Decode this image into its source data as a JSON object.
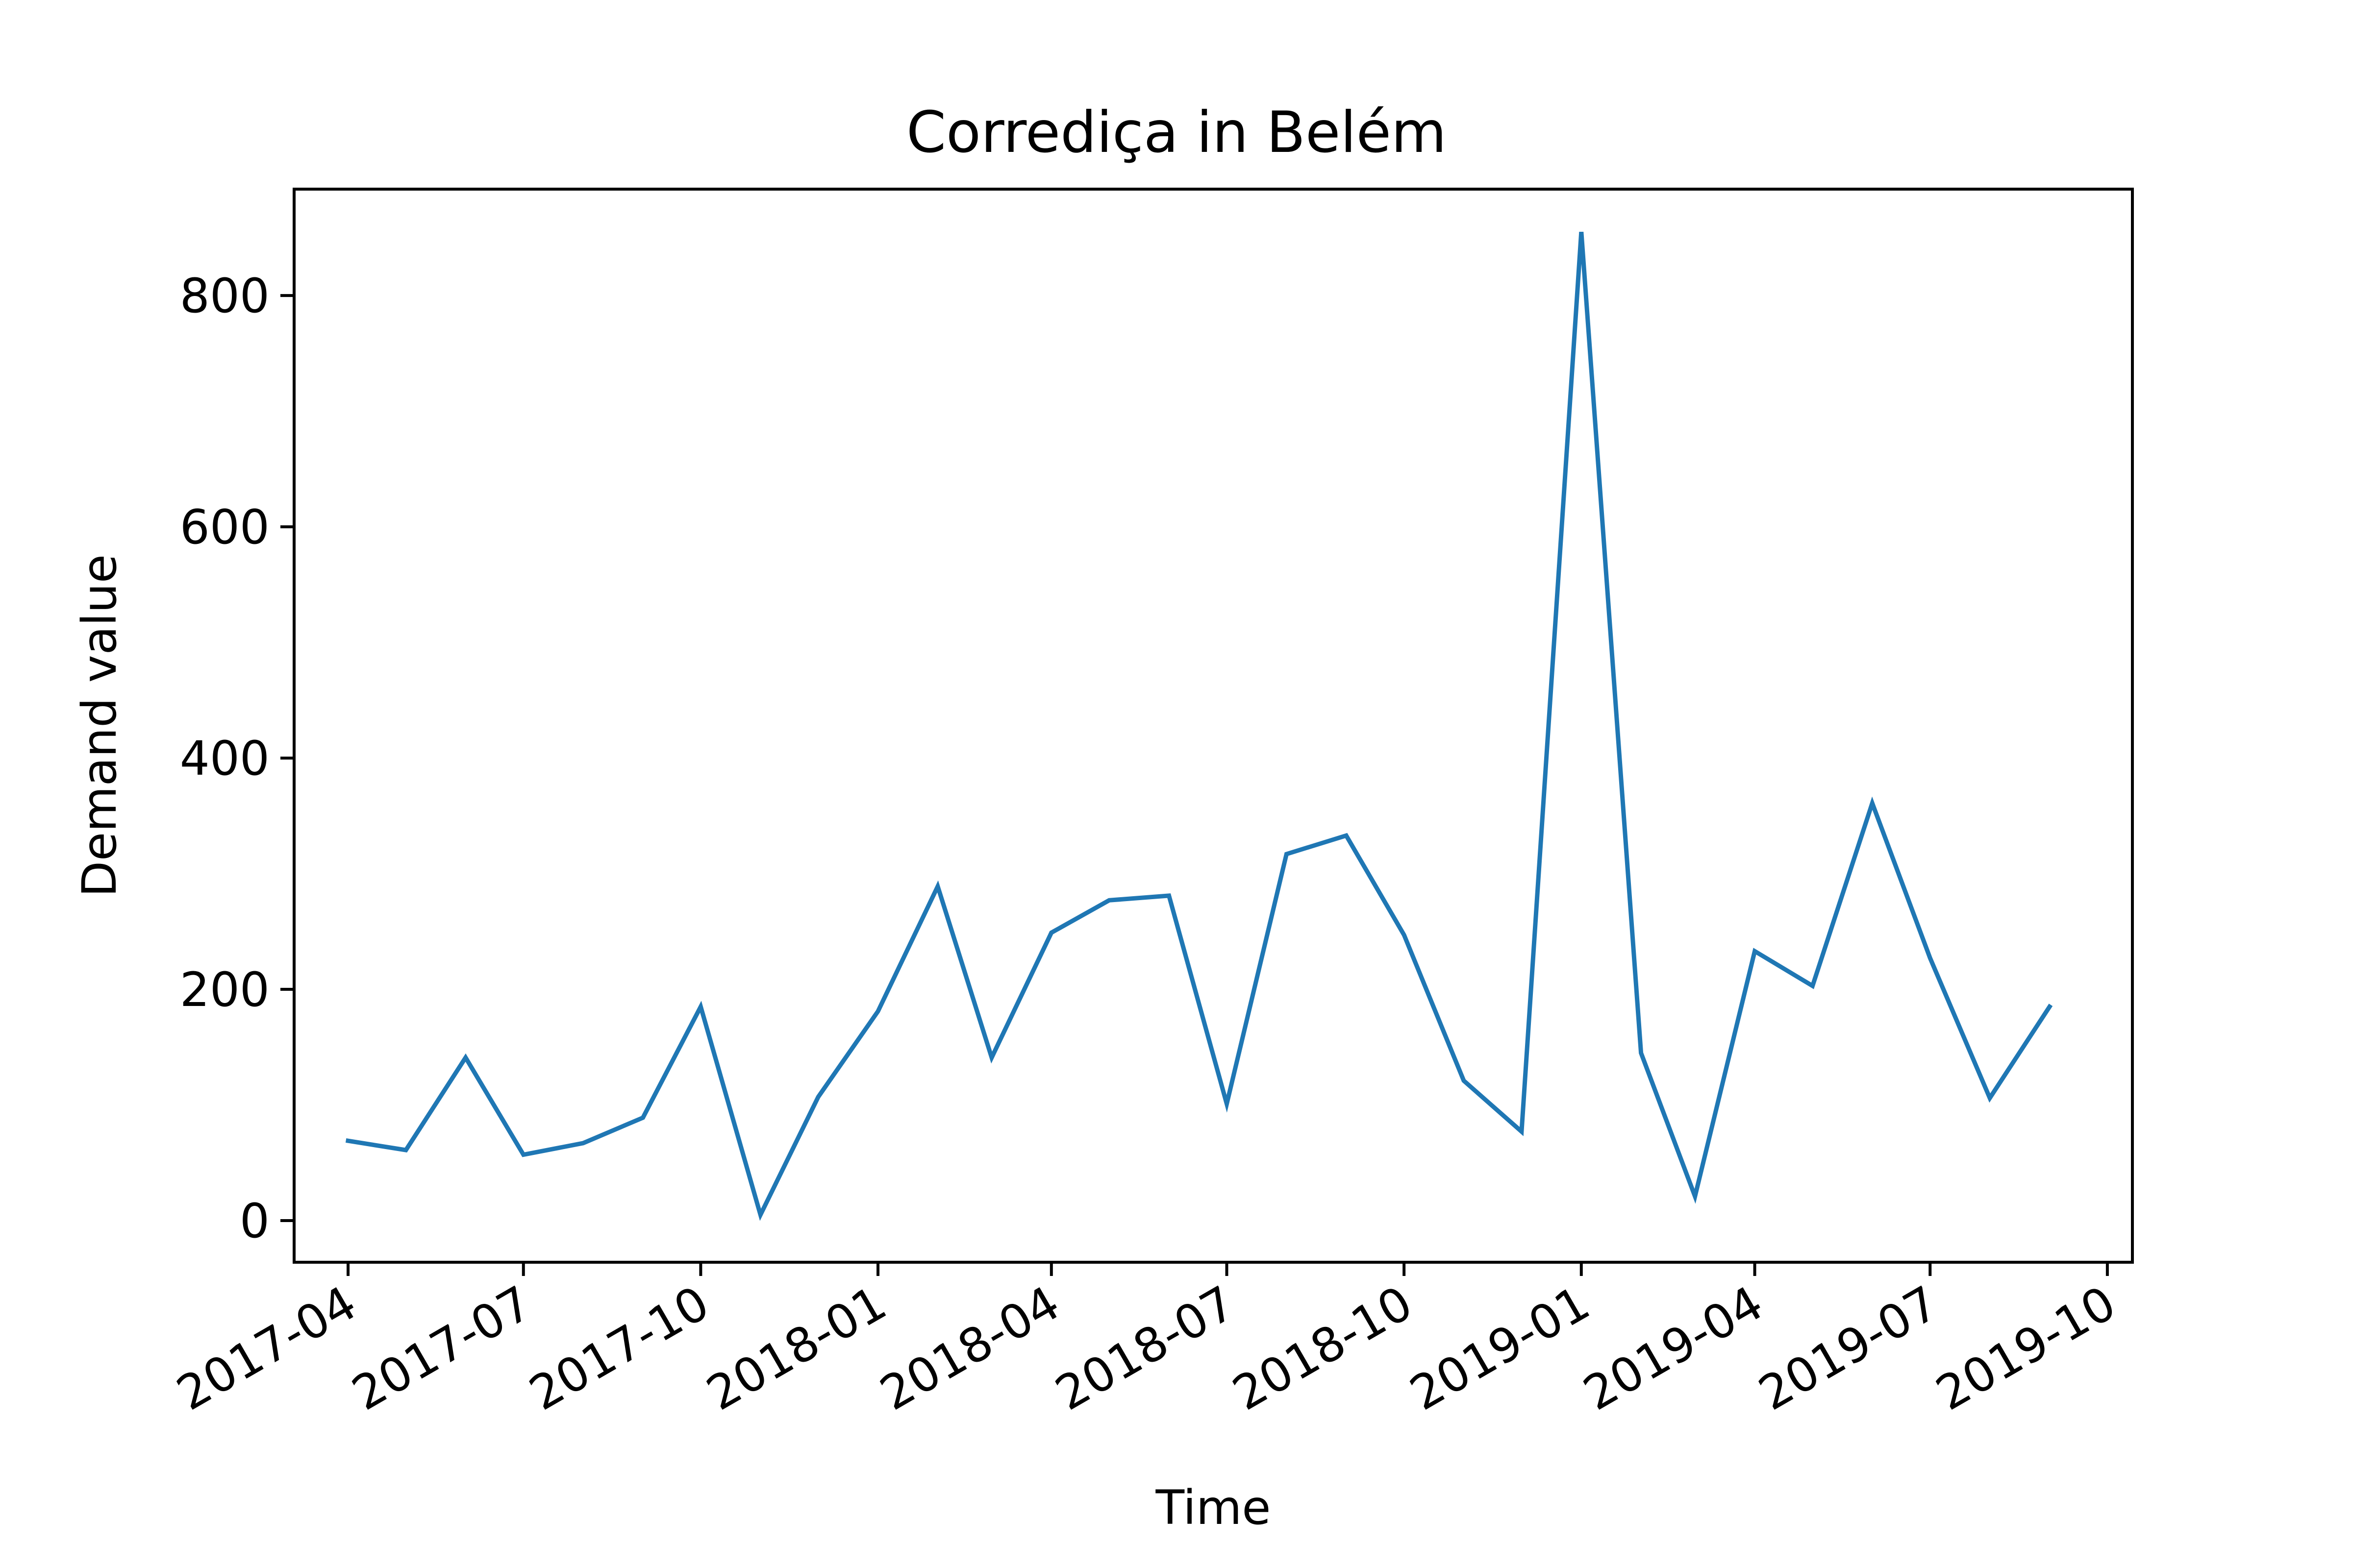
{
  "chart_data": {
    "type": "line",
    "title": "Corrediça in Belém",
    "xlabel": "Time",
    "ylabel": "Demand value",
    "xlim": [
      "2017-03-04",
      "2019-10-14"
    ],
    "ylim": [
      -36,
      892
    ],
    "x_ticks": [
      "2017-04",
      "2017-07",
      "2017-10",
      "2018-01",
      "2018-04",
      "2018-07",
      "2018-10",
      "2019-01",
      "2019-04",
      "2019-07",
      "2019-10"
    ],
    "y_ticks": [
      0,
      200,
      400,
      600,
      800
    ],
    "grid": false,
    "series": [
      {
        "color": "#1f77b4",
        "x": [
          "2017-04-01",
          "2017-05-01",
          "2017-06-01",
          "2017-07-01",
          "2017-08-01",
          "2017-09-01",
          "2017-10-01",
          "2017-11-01",
          "2017-12-01",
          "2018-01-01",
          "2018-02-01",
          "2018-03-01",
          "2018-04-01",
          "2018-05-01",
          "2018-06-01",
          "2018-07-01",
          "2018-08-01",
          "2018-09-01",
          "2018-10-01",
          "2018-11-01",
          "2018-12-01",
          "2019-01-01",
          "2019-02-01",
          "2019-03-01",
          "2019-04-01",
          "2019-05-01",
          "2019-06-01",
          "2019-07-01",
          "2019-08-01",
          "2019-09-01"
        ],
        "values": [
          69,
          61,
          141,
          57,
          67,
          89,
          185,
          5,
          107,
          181,
          289,
          141,
          249,
          277,
          281,
          101,
          317,
          333,
          247,
          121,
          77,
          855,
          145,
          21,
          233,
          203,
          361,
          227,
          106,
          185
        ]
      }
    ]
  }
}
